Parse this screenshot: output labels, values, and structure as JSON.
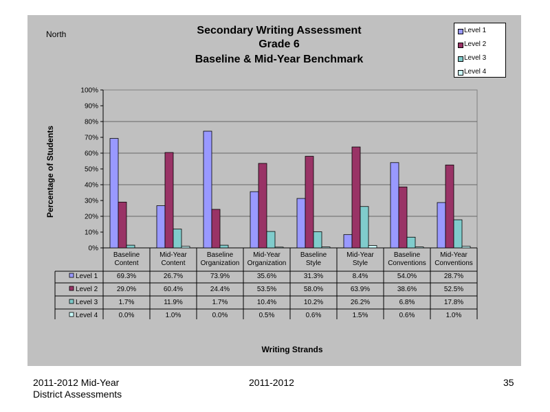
{
  "header": {
    "region": "North"
  },
  "footer": {
    "left_line1": "2011-2012  Mid-Year",
    "left_line2": "District Assessments",
    "center": "2011-2012",
    "page": "35"
  },
  "chart_data": {
    "type": "bar",
    "title": [
      "Secondary Writing Assessment",
      "Grade 6",
      "Baseline & Mid-Year Benchmark"
    ],
    "xlabel": "Writing Strands",
    "ylabel": "Percentage of Students",
    "ylim": [
      0,
      100
    ],
    "yticks": [
      "0%",
      "10%",
      "20%",
      "30%",
      "40%",
      "50%",
      "60%",
      "70%",
      "80%",
      "90%",
      "100%"
    ],
    "grid": true,
    "legend_position": "top-right",
    "categories": [
      [
        "Baseline",
        "Content"
      ],
      [
        "Mid-Year",
        "Content"
      ],
      [
        "Baseline",
        "Organization"
      ],
      [
        "Mid-Year",
        "Organization"
      ],
      [
        "Baseline",
        "Style"
      ],
      [
        "Mid-Year",
        "Style"
      ],
      [
        "Baseline",
        "Conventions"
      ],
      [
        "Mid-Year",
        "Conventions"
      ]
    ],
    "series": [
      {
        "name": "Level 1",
        "color": "#9999ff",
        "values": [
          69.3,
          26.7,
          73.9,
          35.6,
          31.3,
          8.4,
          54.0,
          28.7
        ],
        "labels": [
          "69.3%",
          "26.7%",
          "73.9%",
          "35.6%",
          "31.3%",
          "8.4%",
          "54.0%",
          "28.7%"
        ]
      },
      {
        "name": "Level 2",
        "color": "#993366",
        "values": [
          29.0,
          60.4,
          24.4,
          53.5,
          58.0,
          63.9,
          38.6,
          52.5
        ],
        "labels": [
          "29.0%",
          "60.4%",
          "24.4%",
          "53.5%",
          "58.0%",
          "63.9%",
          "38.6%",
          "52.5%"
        ]
      },
      {
        "name": "Level 3",
        "color": "#80cccc",
        "values": [
          1.7,
          11.9,
          1.7,
          10.4,
          10.2,
          26.2,
          6.8,
          17.8
        ],
        "labels": [
          "1.7%",
          "11.9%",
          "1.7%",
          "10.4%",
          "10.2%",
          "26.2%",
          "6.8%",
          "17.8%"
        ]
      },
      {
        "name": "Level 4",
        "color": "#ccffff",
        "values": [
          0.0,
          1.0,
          0.0,
          0.5,
          0.6,
          1.5,
          0.6,
          1.0
        ],
        "labels": [
          "0.0%",
          "1.0%",
          "0.0%",
          "0.5%",
          "0.6%",
          "1.5%",
          "0.6%",
          "1.0%"
        ]
      }
    ]
  }
}
